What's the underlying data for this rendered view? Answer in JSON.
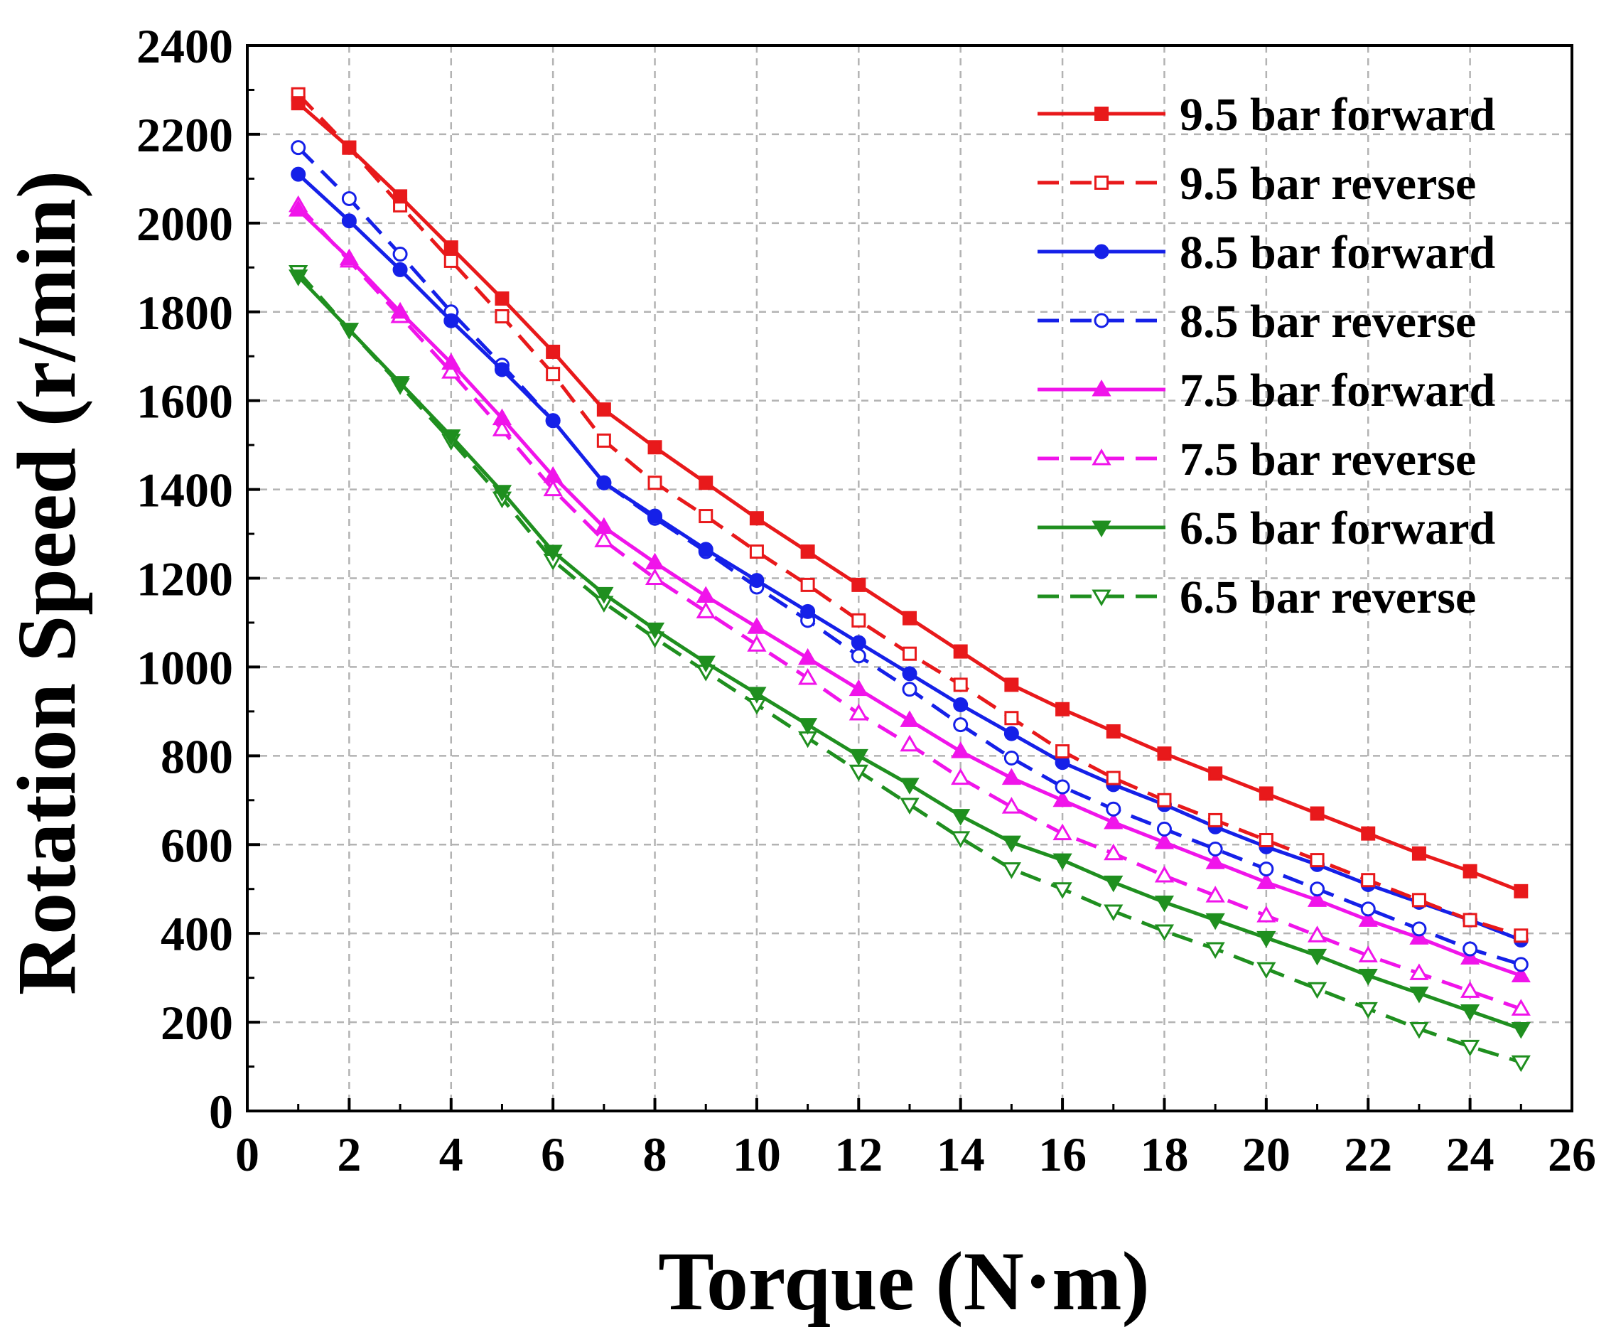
{
  "chart_data": {
    "type": "line",
    "title": "",
    "xlabel": "Torque (N·m)",
    "ylabel": "Rotation Speed (r/min)",
    "xlim": [
      0,
      26
    ],
    "ylim": [
      0,
      2400
    ],
    "x_ticks": [
      0,
      2,
      4,
      6,
      8,
      10,
      12,
      14,
      16,
      18,
      20,
      22,
      24,
      26
    ],
    "y_ticks": [
      0,
      200,
      400,
      600,
      800,
      1000,
      1200,
      1400,
      1600,
      1800,
      2000,
      2200,
      2400
    ],
    "grid": true,
    "legend_position": "top-right",
    "x": [
      1,
      2,
      3,
      4,
      5,
      6,
      7,
      8,
      9,
      10,
      11,
      12,
      13,
      14,
      15,
      16,
      17,
      18,
      19,
      20,
      21,
      22,
      23,
      24,
      25
    ],
    "series": [
      {
        "name": "9.5 bar forward",
        "color": "#e8191b",
        "line": "solid",
        "marker": "square",
        "filled": true,
        "values": [
          2270,
          2170,
          2060,
          1945,
          1830,
          1710,
          1580,
          1495,
          1415,
          1335,
          1260,
          1185,
          1110,
          1035,
          960,
          905,
          855,
          805,
          760,
          715,
          670,
          625,
          580,
          540,
          495
        ]
      },
      {
        "name": "9.5 bar reverse",
        "color": "#e8191b",
        "line": "dashed",
        "marker": "square",
        "filled": false,
        "values": [
          2290,
          2170,
          2040,
          1915,
          1790,
          1660,
          1510,
          1415,
          1340,
          1260,
          1185,
          1105,
          1030,
          960,
          885,
          810,
          750,
          700,
          655,
          610,
          565,
          520,
          475,
          430,
          395
        ]
      },
      {
        "name": "8.5 bar forward",
        "color": "#1520e8",
        "line": "solid",
        "marker": "circle",
        "filled": true,
        "values": [
          2110,
          2005,
          1895,
          1780,
          1670,
          1555,
          1415,
          1340,
          1265,
          1195,
          1125,
          1055,
          985,
          915,
          850,
          785,
          735,
          690,
          640,
          595,
          555,
          510,
          470,
          430,
          385
        ]
      },
      {
        "name": "8.5 bar reverse",
        "color": "#1520e8",
        "line": "dashed",
        "marker": "circle",
        "filled": false,
        "values": [
          2170,
          2055,
          1930,
          1800,
          1680,
          1555,
          1415,
          1335,
          1260,
          1180,
          1105,
          1025,
          950,
          870,
          795,
          730,
          680,
          635,
          590,
          545,
          500,
          455,
          410,
          365,
          330
        ]
      },
      {
        "name": "7.5 bar forward",
        "color": "#f014ea",
        "line": "solid",
        "marker": "triangle-up",
        "filled": true,
        "values": [
          2030,
          1920,
          1800,
          1685,
          1560,
          1430,
          1315,
          1235,
          1160,
          1090,
          1020,
          950,
          880,
          810,
          750,
          700,
          650,
          605,
          560,
          515,
          475,
          430,
          390,
          345,
          305
        ]
      },
      {
        "name": "7.5 bar reverse",
        "color": "#f014ea",
        "line": "dashed",
        "marker": "triangle-up",
        "filled": false,
        "values": [
          2040,
          1915,
          1790,
          1665,
          1535,
          1400,
          1285,
          1200,
          1125,
          1050,
          975,
          895,
          825,
          750,
          685,
          625,
          580,
          530,
          485,
          440,
          395,
          350,
          310,
          270,
          230
        ]
      },
      {
        "name": "6.5 bar forward",
        "color": "#1f8f1f",
        "line": "solid",
        "marker": "triangle-down",
        "filled": true,
        "values": [
          1880,
          1760,
          1640,
          1520,
          1395,
          1260,
          1165,
          1085,
          1010,
          940,
          870,
          800,
          735,
          665,
          605,
          565,
          515,
          470,
          430,
          390,
          350,
          305,
          265,
          225,
          185
        ]
      },
      {
        "name": "6.5 bar reverse",
        "color": "#1f8f1f",
        "line": "dashed",
        "marker": "triangle-down",
        "filled": false,
        "values": [
          1890,
          1760,
          1635,
          1510,
          1380,
          1240,
          1145,
          1065,
          990,
          915,
          840,
          765,
          690,
          615,
          545,
          500,
          450,
          405,
          365,
          320,
          275,
          230,
          185,
          145,
          110
        ]
      }
    ]
  }
}
